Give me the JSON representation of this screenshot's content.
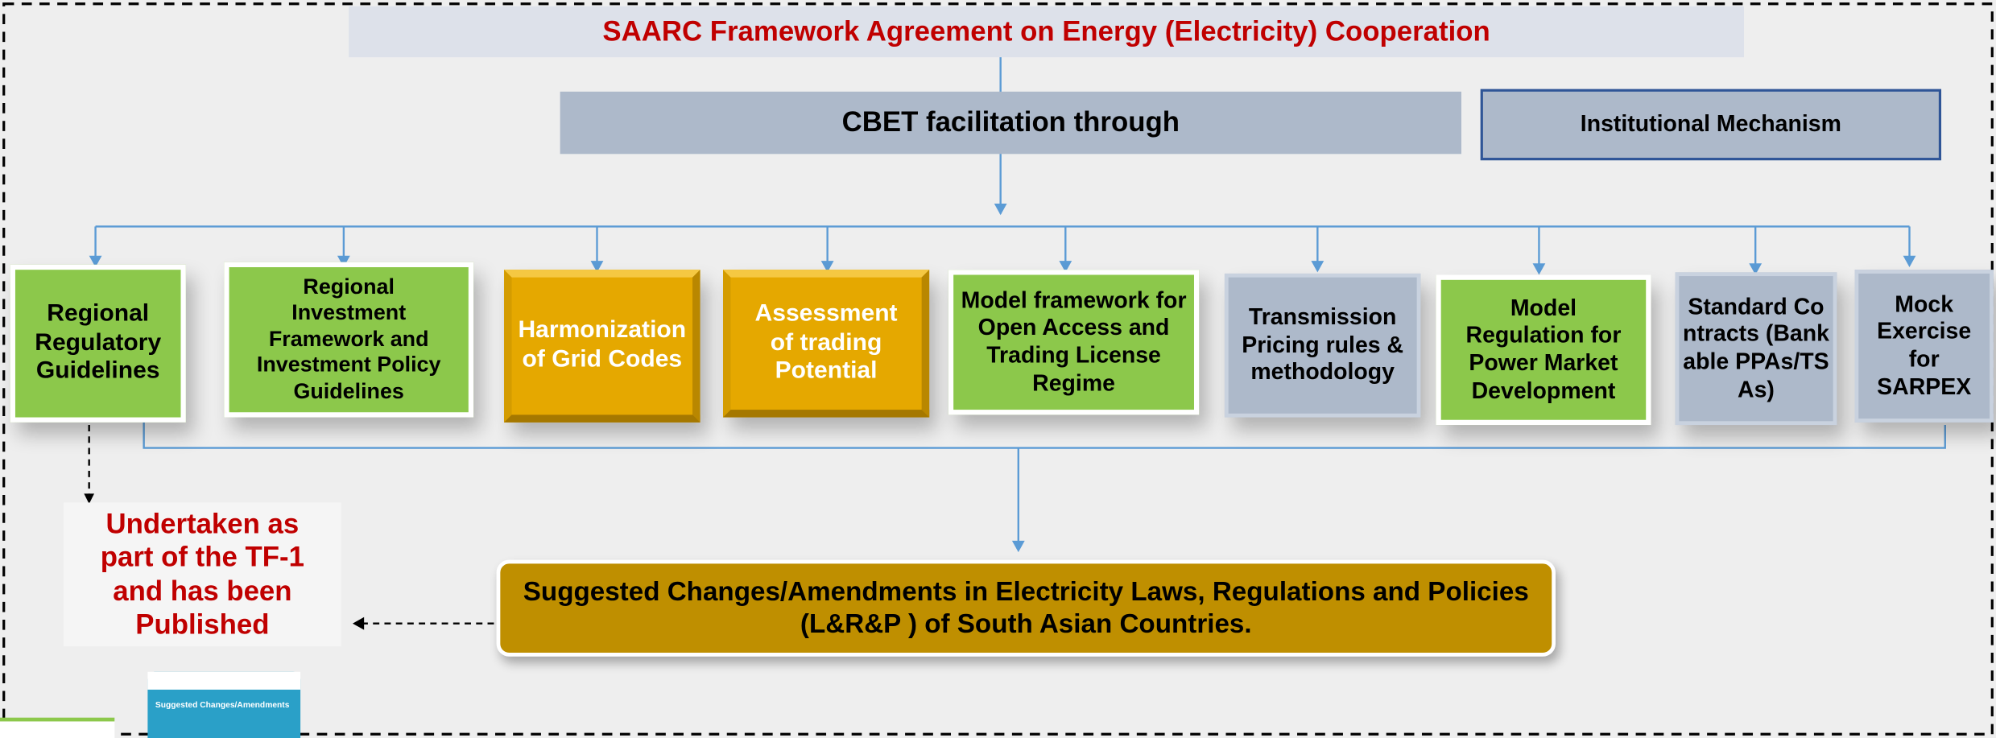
{
  "header": {
    "title": "SAARC Framework Agreement on Energy (Electricity) Cooperation"
  },
  "facilitation": {
    "label": "CBET facilitation through"
  },
  "institutional": {
    "label": "Institutional Mechanism"
  },
  "nodes": [
    {
      "label": "Regional Regulatory Guidelines"
    },
    {
      "label": "Regional Investment Framework and Investment Policy Guidelines"
    },
    {
      "label": "Harmonization of Grid Codes"
    },
    {
      "label": "Assessment of trading Potential"
    },
    {
      "label": "Model framework for Open Access and Trading License Regime"
    },
    {
      "label": "Transmission Pricing rules & methodology"
    },
    {
      "label": "Model Regulation for Power Market Development"
    },
    {
      "label": "Standard Contracts (Bankable PPAs/TSAs)"
    },
    {
      "label": "Mock Exercise for SARPEX"
    }
  ],
  "note": {
    "label": "Undertaken as part of the TF-1 and has been Published"
  },
  "output": {
    "label": "Suggested Changes/Amendments in Electricity Laws, Regulations and Policies (L&R&P ) of South Asian Countries."
  },
  "thumbnail": {
    "label": "Suggested Changes/Amendments"
  }
}
